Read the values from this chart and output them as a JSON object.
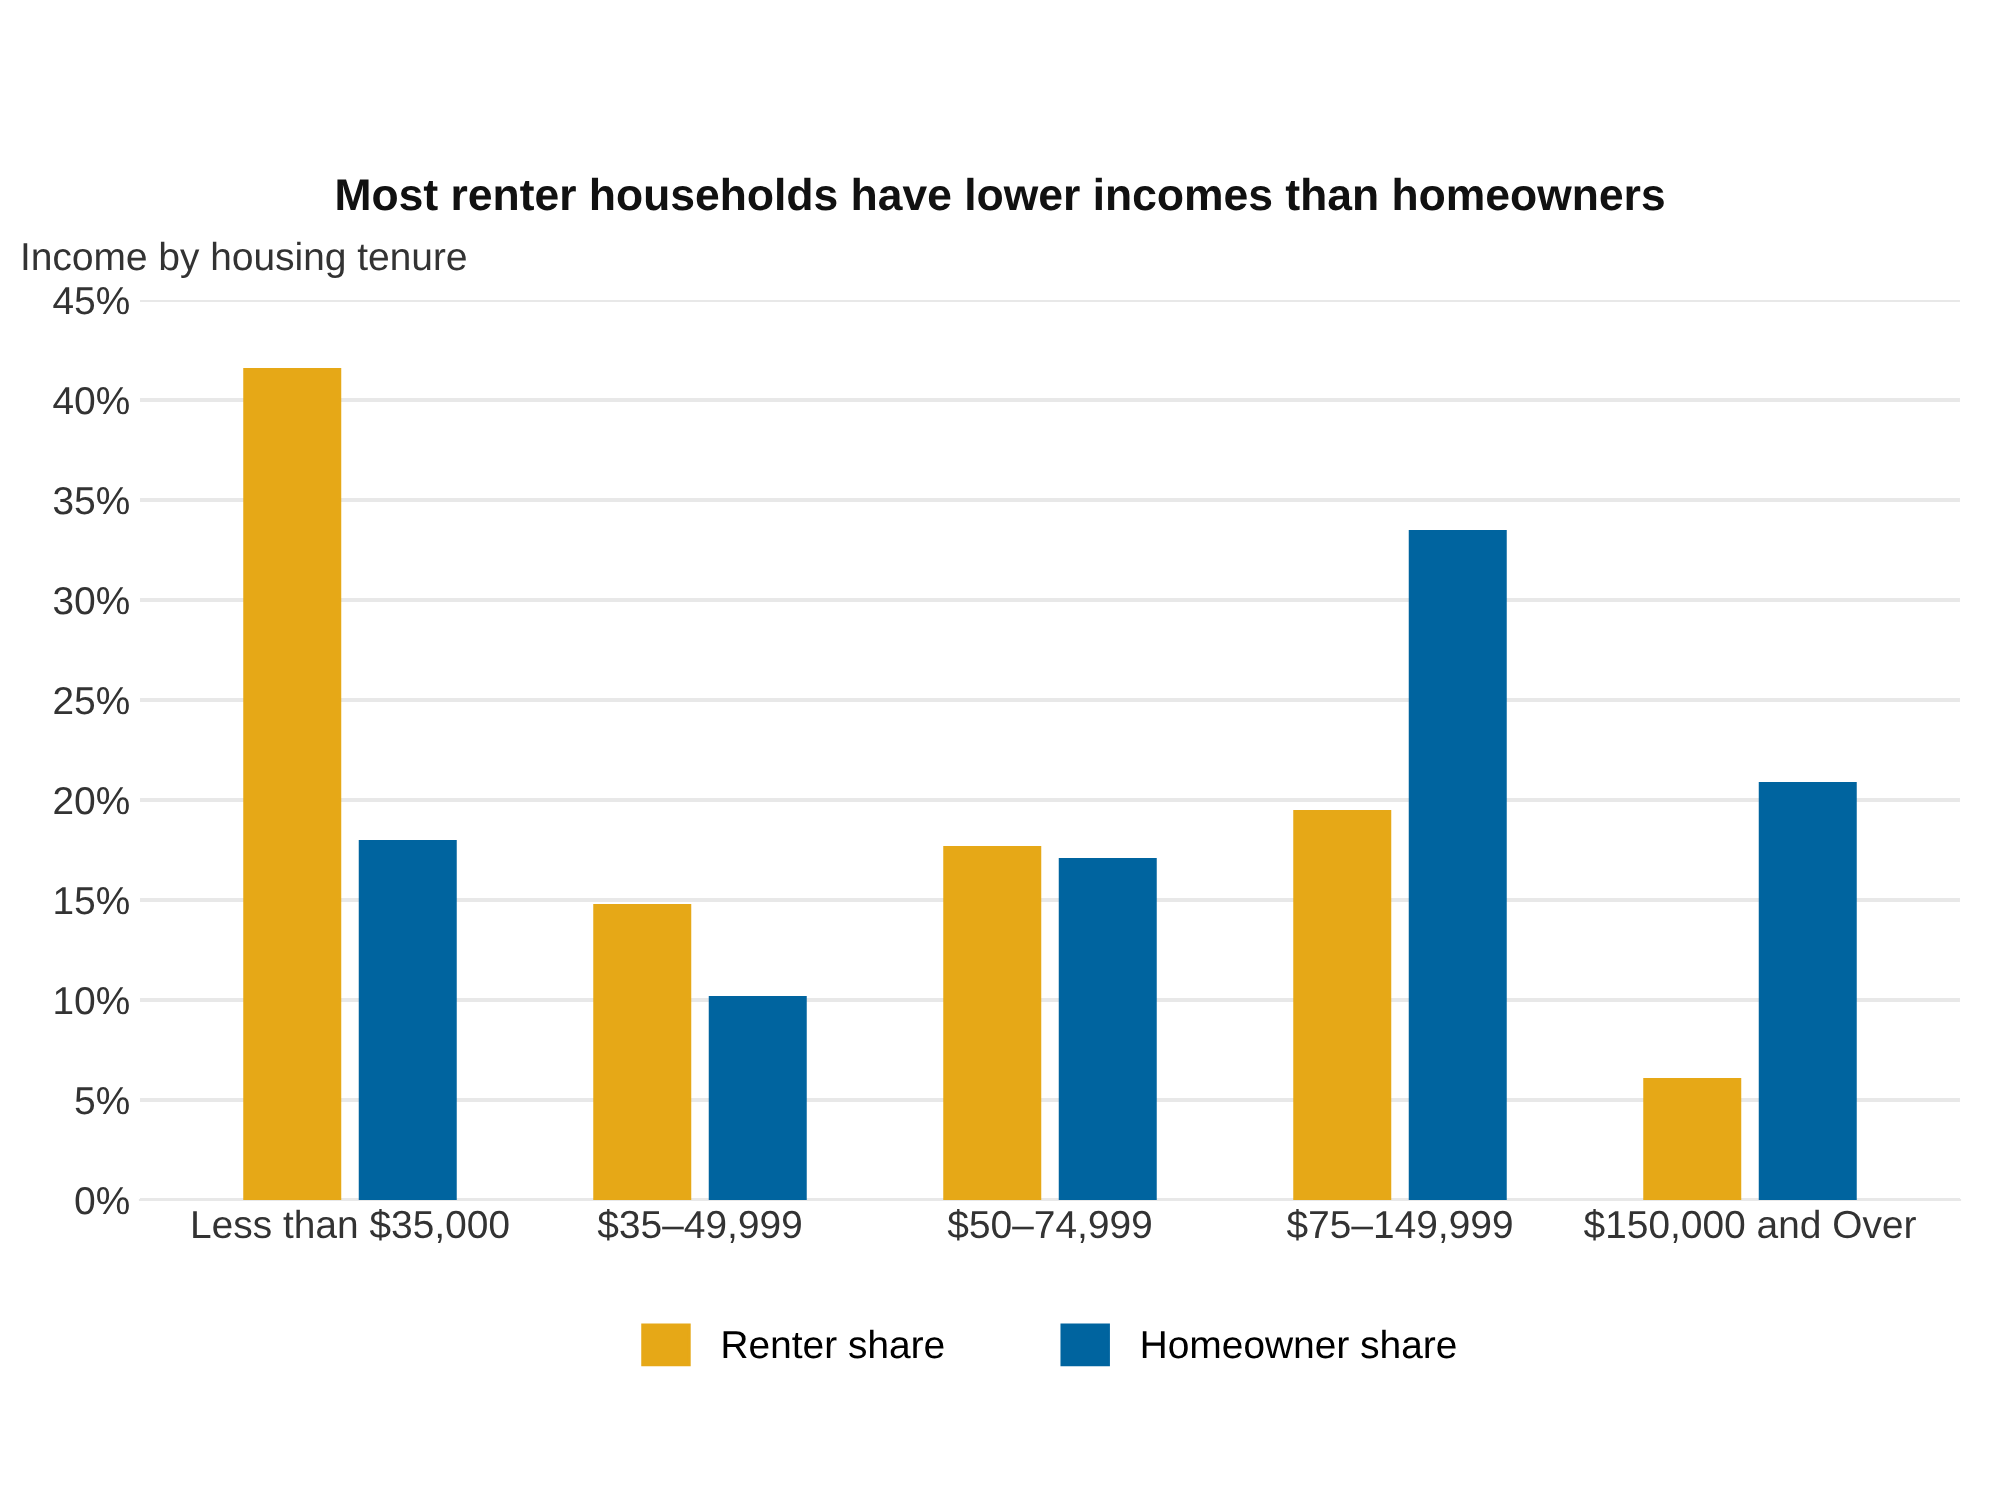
{
  "chart_data": {
    "type": "bar",
    "title": "Most renter households have lower incomes than homeowners",
    "subtitle": "Income by housing tenure",
    "categories": [
      "Less than $35,000",
      "$35–49,999",
      "$50–74,999",
      "$75–149,999",
      "$150,000 and Over"
    ],
    "series": [
      {
        "name": "Renter share",
        "color": "#e6a817",
        "values": [
          41.6,
          14.8,
          17.7,
          19.5,
          6.1
        ]
      },
      {
        "name": "Homeowner share",
        "color": "#00649f",
        "values": [
          18.0,
          10.2,
          17.1,
          33.5,
          20.9
        ]
      }
    ],
    "ylim": [
      0,
      45
    ],
    "yticks": [
      {
        "value": 0,
        "label": "0%"
      },
      {
        "value": 5,
        "label": "5%"
      },
      {
        "value": 10,
        "label": "10%"
      },
      {
        "value": 15,
        "label": "15%"
      },
      {
        "value": 20,
        "label": "20%"
      },
      {
        "value": 25,
        "label": "25%"
      },
      {
        "value": 30,
        "label": "30%"
      },
      {
        "value": 35,
        "label": "35%"
      },
      {
        "value": 40,
        "label": "40%"
      },
      {
        "value": 45,
        "label": "45%"
      }
    ],
    "grid": "y",
    "legend": "bottom"
  }
}
